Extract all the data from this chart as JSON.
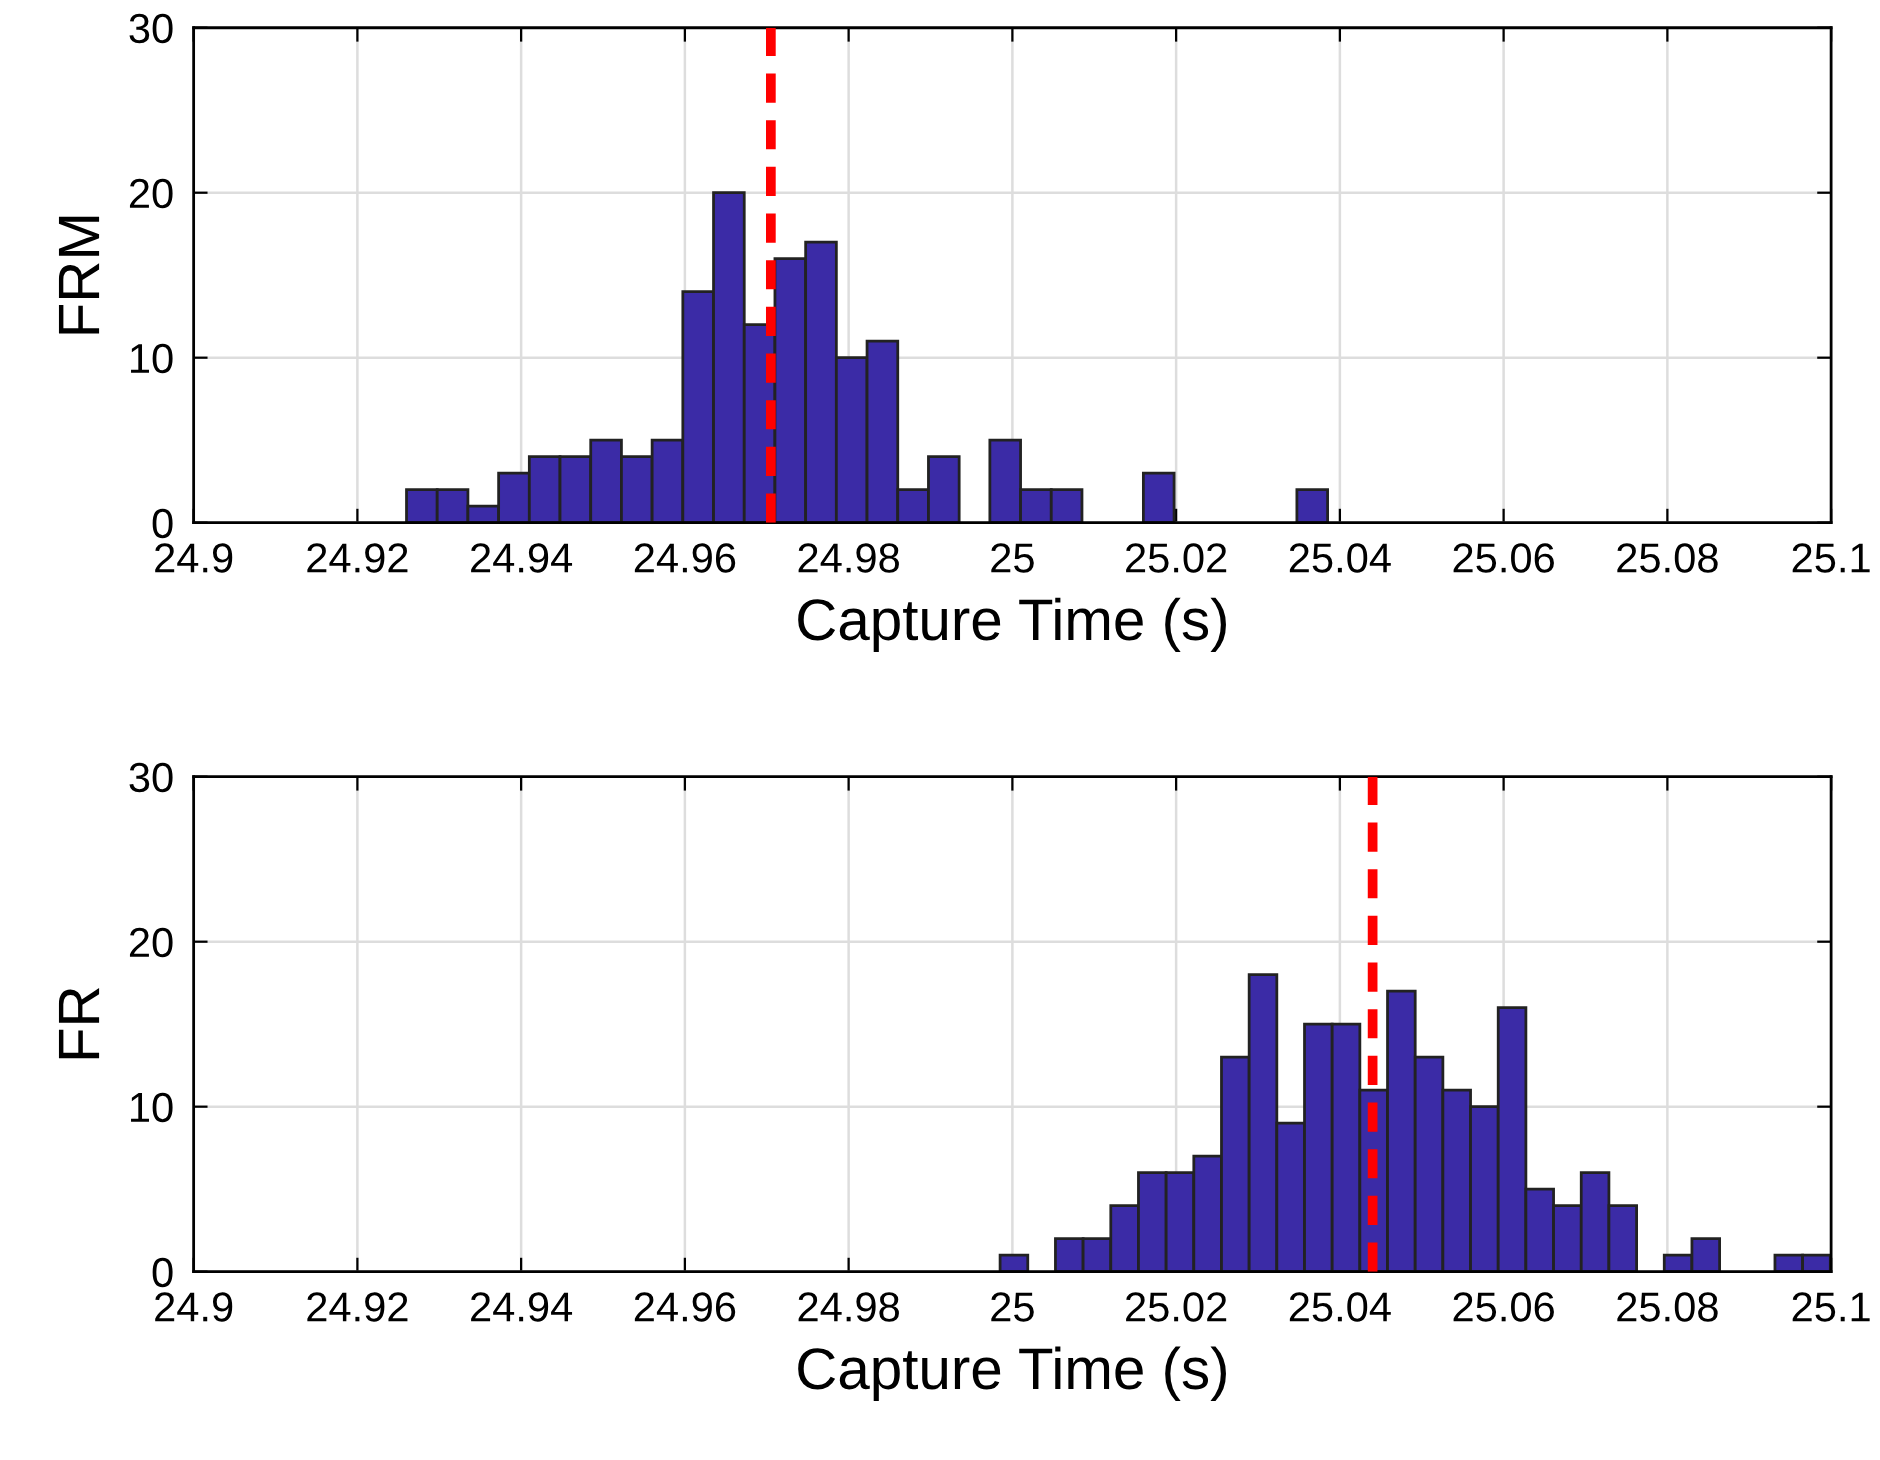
{
  "chart_data": [
    {
      "type": "histogram",
      "xlabel": "Capture Time (s)",
      "ylabel": "FRM",
      "color": "#3b2ba6",
      "bins": [
        24.926,
        24.92975,
        24.9335,
        24.93725,
        24.941,
        24.94475,
        24.9485,
        24.95225,
        24.956,
        24.95975,
        24.9635,
        24.96725,
        24.971,
        24.97475,
        24.9785,
        24.98225,
        24.986,
        24.98975,
        24.9935,
        24.99725,
        25.001,
        25.00475,
        25.0085,
        25.01225,
        25.016,
        25.01975,
        25.0235,
        25.02725,
        25.031,
        25.03475,
        25.0385
      ],
      "values": [
        2,
        2,
        1,
        3,
        4,
        4,
        5,
        4,
        5,
        14,
        20,
        12,
        16,
        17,
        10,
        11,
        2,
        4,
        0,
        5,
        2,
        2,
        0,
        0,
        3,
        0,
        0,
        0,
        0,
        2
      ],
      "xlim": [
        24.9,
        25.1
      ],
      "ylim": [
        0,
        30
      ],
      "xticks": [
        24.9,
        24.92,
        24.94,
        24.96,
        24.98,
        25,
        25.02,
        25.04,
        25.06,
        25.08,
        25.1
      ],
      "yticks": [
        0,
        10,
        20,
        30
      ],
      "grid": true,
      "ref_lines": [
        {
          "axis": "x",
          "value": 24.9705,
          "label": null,
          "color": "#ff0000",
          "line_style": "dashed"
        }
      ]
    },
    {
      "type": "histogram",
      "xlabel": "Capture Time (s)",
      "ylabel": "FR",
      "color": "#3b2ba6",
      "bins": [
        24.9985,
        25.00188,
        25.00526,
        25.00864,
        25.01202,
        25.0154,
        25.01878,
        25.02216,
        25.02554,
        25.02892,
        25.0323,
        25.03568,
        25.03906,
        25.04244,
        25.04582,
        25.0492,
        25.05258,
        25.05596,
        25.05934,
        25.06272,
        25.0661,
        25.06948,
        25.07286,
        25.07624,
        25.07962,
        25.083,
        25.08638,
        25.08976,
        25.09314,
        25.09652,
        25.0999
      ],
      "values": [
        1,
        0,
        2,
        2,
        4,
        6,
        6,
        7,
        13,
        18,
        9,
        15,
        15,
        11,
        17,
        13,
        11,
        10,
        16,
        5,
        4,
        6,
        4,
        0,
        1,
        2,
        0,
        0,
        1,
        1
      ],
      "xlim": [
        24.9,
        25.1
      ],
      "ylim": [
        0,
        30
      ],
      "xticks": [
        24.9,
        24.92,
        24.94,
        24.96,
        24.98,
        25,
        25.02,
        25.04,
        25.06,
        25.08,
        25.1
      ],
      "yticks": [
        0,
        10,
        20,
        30
      ],
      "grid": true,
      "ref_lines": [
        {
          "axis": "x",
          "value": 25.044,
          "label": null,
          "color": "#ff0000",
          "line_style": "dashed"
        }
      ]
    }
  ]
}
